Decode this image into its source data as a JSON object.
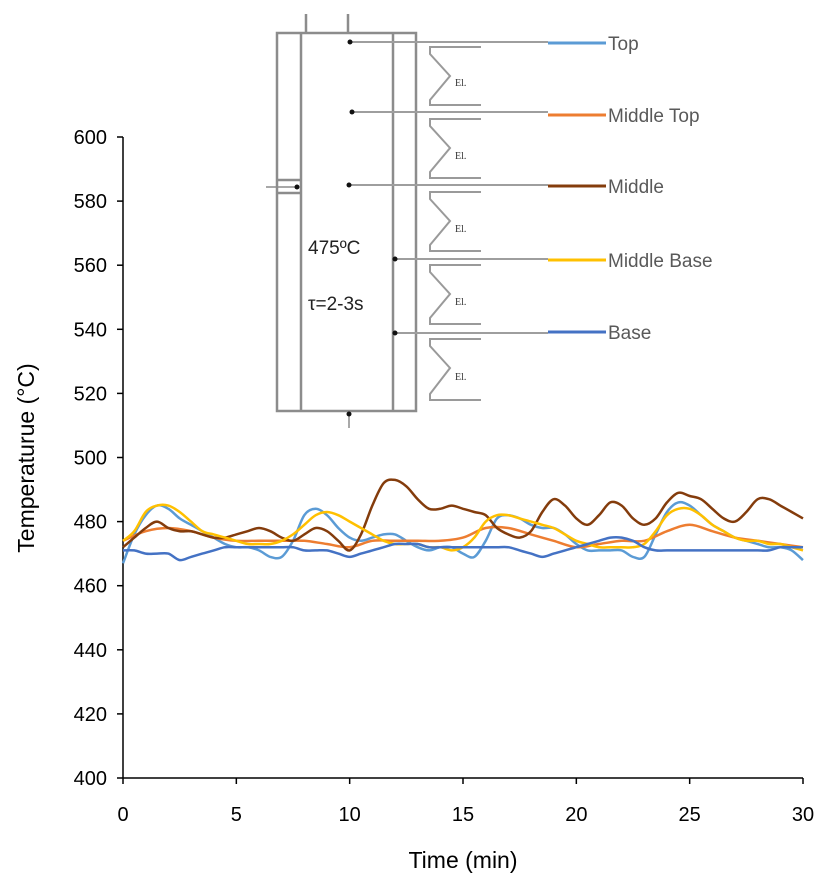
{
  "chart_data": {
    "type": "line",
    "xlabel": "Time (min)",
    "ylabel": "Temperaturue (°C)",
    "xlim": [
      0,
      30
    ],
    "ylim": [
      400,
      600
    ],
    "xticks": [
      0,
      5,
      10,
      15,
      20,
      25,
      30
    ],
    "yticks": [
      400,
      420,
      440,
      460,
      480,
      500,
      520,
      540,
      560,
      580,
      600
    ],
    "grid": false,
    "legend_position": "top-right (attached to reactor diagram sensor lines)",
    "series": [
      {
        "name": "Top",
        "color": "#5B9BD5",
        "x": [
          0,
          0.5,
          1,
          1.5,
          2,
          2.5,
          3,
          3.5,
          4,
          4.5,
          5,
          5.5,
          6,
          6.5,
          7,
          7.5,
          8,
          8.5,
          9,
          9.5,
          10,
          10.5,
          11,
          11.5,
          12,
          12.5,
          13,
          13.5,
          14,
          14.5,
          15,
          15.5,
          16,
          16.5,
          17,
          17.5,
          18,
          18.5,
          19,
          19.5,
          20,
          20.5,
          21,
          21.5,
          22,
          22.5,
          23,
          23.5,
          24,
          24.5,
          25,
          25.5,
          26,
          26.5,
          27,
          27.5,
          28,
          28.5,
          29,
          29.5,
          30
        ],
        "y": [
          467,
          476,
          482,
          485,
          484,
          481,
          479,
          477,
          475,
          473,
          472,
          472,
          471,
          469,
          469,
          474,
          482,
          484,
          482,
          478,
          475,
          474,
          475,
          476,
          476,
          474,
          472,
          471,
          472,
          472,
          470,
          469,
          474,
          481,
          482,
          481,
          479,
          478,
          478,
          476,
          473,
          471,
          471,
          471,
          471,
          469,
          469,
          476,
          483,
          486,
          485,
          482,
          479,
          477,
          475,
          474,
          473,
          472,
          472,
          471,
          468
        ]
      },
      {
        "name": "Middle Top",
        "color": "#ED7D31",
        "x": [
          0,
          1,
          2,
          3,
          4,
          5,
          6,
          7,
          8,
          9,
          10,
          11,
          12,
          13,
          14,
          15,
          16,
          17,
          18,
          19,
          20,
          21,
          22,
          23,
          24,
          25,
          26,
          27,
          28,
          29,
          30
        ],
        "y": [
          474,
          477,
          478,
          477,
          475,
          474,
          474,
          474,
          474,
          473,
          472,
          474,
          474,
          474,
          474,
          475,
          478,
          478,
          476,
          474,
          472,
          473,
          474,
          474,
          477,
          479,
          477,
          475,
          474,
          473,
          472
        ]
      },
      {
        "name": "Middle",
        "color": "#843C0C",
        "x": [
          0,
          0.5,
          1,
          1.5,
          2,
          2.5,
          3,
          3.5,
          4,
          4.5,
          5,
          5.5,
          6,
          6.5,
          7,
          7.5,
          8,
          8.5,
          9,
          9.5,
          10,
          10.5,
          11,
          11.5,
          12,
          12.5,
          13,
          13.5,
          14,
          14.5,
          15,
          15.5,
          16,
          16.5,
          17,
          17.5,
          18,
          18.5,
          19,
          19.5,
          20,
          20.5,
          21,
          21.5,
          22,
          22.5,
          23,
          23.5,
          24,
          24.5,
          25,
          25.5,
          26,
          26.5,
          27,
          27.5,
          28,
          28.5,
          29,
          29.5,
          30
        ],
        "y": [
          472,
          475,
          478,
          480,
          478,
          477,
          477,
          476,
          475,
          475,
          476,
          477,
          478,
          477,
          475,
          474,
          476,
          478,
          477,
          474,
          471,
          476,
          485,
          492,
          493,
          491,
          487,
          484,
          484,
          485,
          484,
          483,
          482,
          478,
          476,
          475,
          477,
          483,
          487,
          485,
          481,
          479,
          482,
          486,
          485,
          481,
          479,
          481,
          486,
          489,
          488,
          487,
          484,
          481,
          480,
          483,
          487,
          487,
          485,
          483,
          481
        ]
      },
      {
        "name": "Middle Base",
        "color": "#FFC000",
        "x": [
          0,
          0.5,
          1,
          1.5,
          2,
          2.5,
          3,
          3.5,
          4,
          4.5,
          5,
          5.5,
          6,
          6.5,
          7,
          7.5,
          8,
          8.5,
          9,
          9.5,
          10,
          10.5,
          11,
          11.5,
          12,
          12.5,
          13,
          13.5,
          14,
          14.5,
          15,
          15.5,
          16,
          16.5,
          17,
          17.5,
          18,
          18.5,
          19,
          19.5,
          20,
          20.5,
          21,
          21.5,
          22,
          22.5,
          23,
          23.5,
          24,
          24.5,
          25,
          25.5,
          26,
          26.5,
          27,
          27.5,
          28,
          28.5,
          29,
          29.5,
          30
        ],
        "y": [
          474,
          477,
          483,
          485,
          485,
          483,
          480,
          477,
          476,
          475,
          474,
          473,
          473,
          473,
          474,
          476,
          479,
          482,
          483,
          482,
          480,
          478,
          476,
          474,
          473,
          473,
          473,
          472,
          472,
          471,
          472,
          475,
          480,
          482,
          482,
          481,
          480,
          479,
          478,
          476,
          474,
          473,
          472,
          472,
          472,
          472,
          473,
          477,
          482,
          484,
          484,
          482,
          479,
          477,
          475,
          474,
          474,
          473,
          473,
          472,
          471
        ]
      },
      {
        "name": "Base",
        "color": "#4472C4",
        "x": [
          0,
          0.5,
          1,
          1.5,
          2,
          2.5,
          3,
          3.5,
          4,
          4.5,
          5,
          5.5,
          6,
          6.5,
          7,
          7.5,
          8,
          8.5,
          9,
          9.5,
          10,
          10.5,
          11,
          11.5,
          12,
          12.5,
          13,
          13.5,
          14,
          14.5,
          15,
          15.5,
          16,
          16.5,
          17,
          17.5,
          18,
          18.5,
          19,
          19.5,
          20,
          20.5,
          21,
          21.5,
          22,
          22.5,
          23,
          23.5,
          24,
          24.5,
          25,
          25.5,
          26,
          26.5,
          27,
          27.5,
          28,
          28.5,
          29,
          29.5,
          30
        ],
        "y": [
          471,
          471,
          470,
          470,
          470,
          468,
          469,
          470,
          471,
          472,
          472,
          472,
          472,
          472,
          472,
          472,
          471,
          471,
          471,
          470,
          469,
          470,
          471,
          472,
          473,
          473,
          473,
          472,
          472,
          472,
          472,
          472,
          472,
          472,
          472,
          471,
          470,
          469,
          470,
          471,
          472,
          473,
          474,
          475,
          475,
          474,
          472,
          471,
          471,
          471,
          471,
          471,
          471,
          471,
          471,
          471,
          471,
          471,
          472,
          472,
          472
        ]
      }
    ]
  },
  "diagram": {
    "temperature_label": "475ºC",
    "residence_label": "τ=2-3s",
    "element_labels": [
      "El.",
      "El.",
      "El.",
      "El.",
      "El."
    ]
  }
}
